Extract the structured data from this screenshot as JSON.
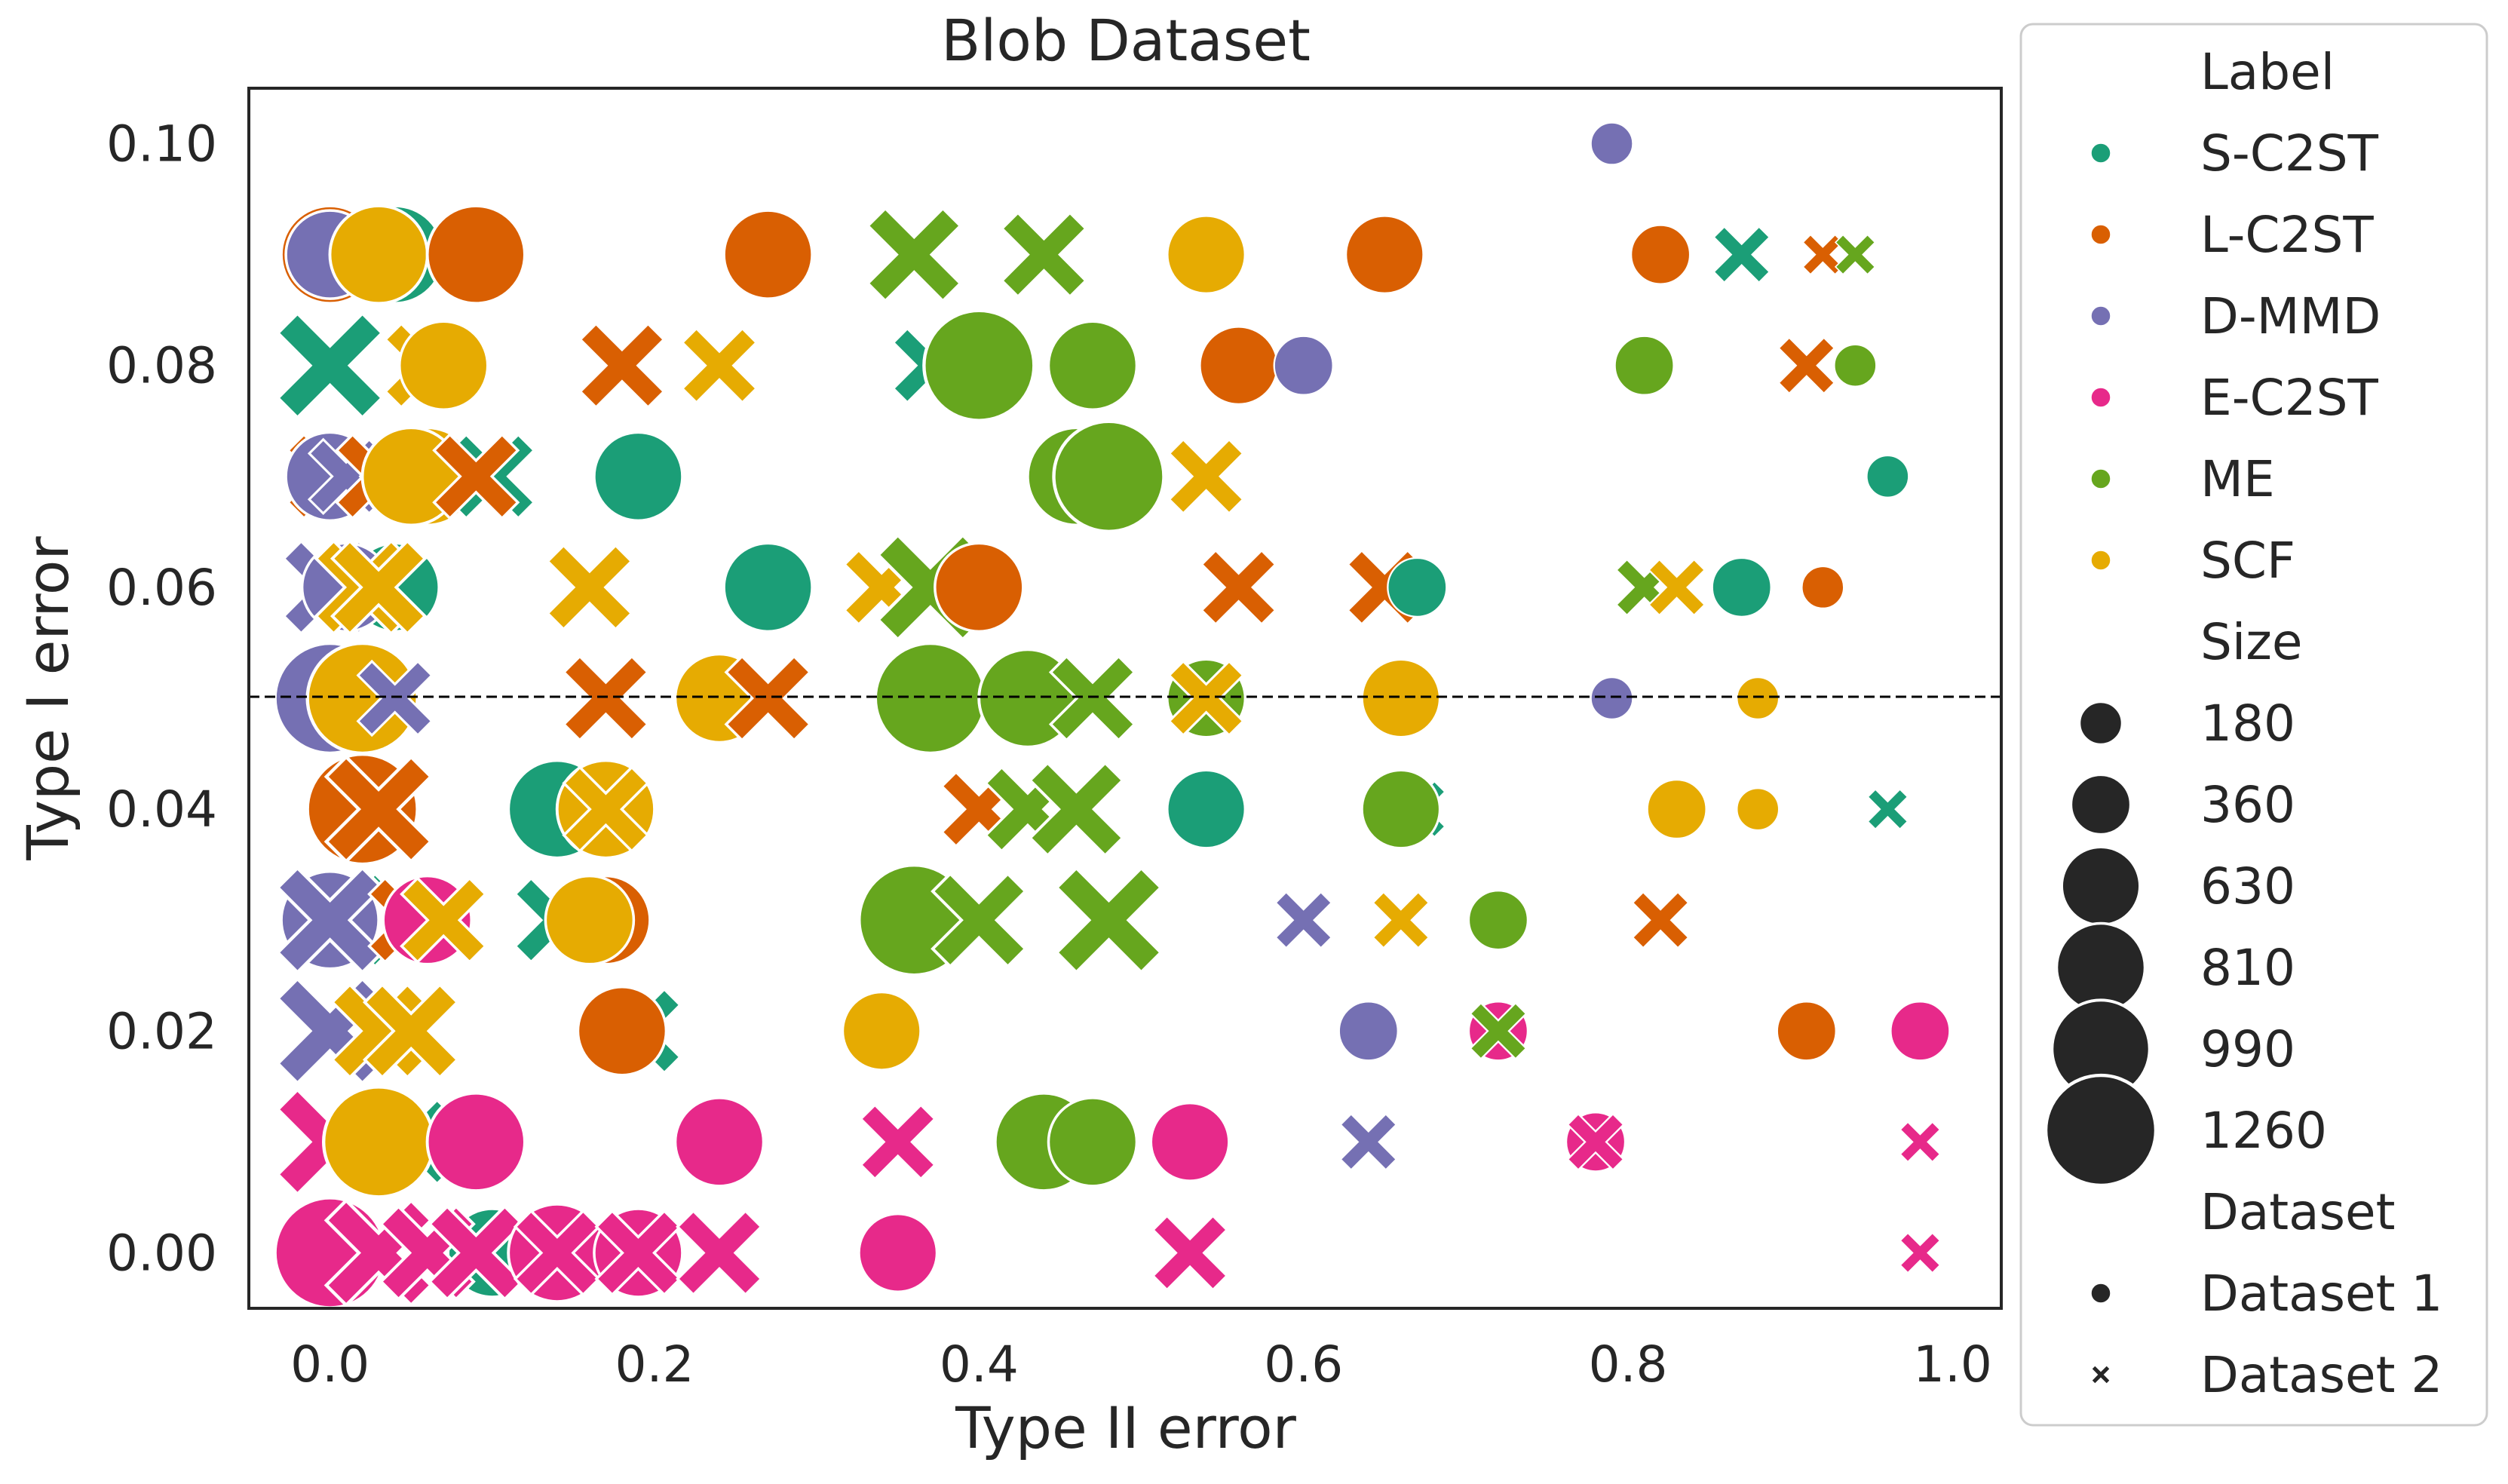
{
  "chart_data": {
    "type": "scatter",
    "title": "Blob Dataset",
    "xlabel": "Type II error",
    "ylabel": "Type I error",
    "xlim": [
      -0.05,
      1.03
    ],
    "ylim": [
      -0.005,
      0.105
    ],
    "xticks": [
      "0.0",
      "0.2",
      "0.4",
      "0.6",
      "0.8",
      "1.0"
    ],
    "xtick_values": [
      0,
      0.2,
      0.4,
      0.6,
      0.8,
      1.0
    ],
    "yticks": [
      "0.00",
      "0.02",
      "0.04",
      "0.06",
      "0.08",
      "0.10"
    ],
    "ytick_values": [
      0,
      0.02,
      0.04,
      0.06,
      0.08,
      0.1
    ],
    "reference_line": {
      "y": 0.05,
      "style": "dashed",
      "color": "#000000"
    },
    "grid": false,
    "legend_position": "outside-right",
    "legend": {
      "label_title": "Label",
      "labels": [
        {
          "name": "S-C2ST",
          "color": "#1b9e77"
        },
        {
          "name": "L-C2ST",
          "color": "#d95f02"
        },
        {
          "name": "D-MMD",
          "color": "#7570b3"
        },
        {
          "name": "E-C2ST",
          "color": "#e7298a"
        },
        {
          "name": "ME",
          "color": "#66a61e"
        },
        {
          "name": "SCF",
          "color": "#e6ab02"
        }
      ],
      "size_title": "Size",
      "sizes": [
        "180",
        "360",
        "630",
        "810",
        "990",
        "1260"
      ],
      "dataset_title": "Dataset",
      "datasets": [
        {
          "name": "Dataset 1",
          "marker": "circle"
        },
        {
          "name": "Dataset 2",
          "marker": "x"
        }
      ]
    },
    "points": [
      {
        "x": 0.79,
        "y": 0.1,
        "label": "D-MMD",
        "size": 180,
        "dataset": 1
      },
      {
        "x": 0.0,
        "y": 0.09,
        "label": "L-C2ST",
        "size": 990,
        "dataset": 1
      },
      {
        "x": 0.0,
        "y": 0.09,
        "label": "D-MMD",
        "size": 810,
        "dataset": 1
      },
      {
        "x": 0.04,
        "y": 0.09,
        "label": "S-C2ST",
        "size": 990,
        "dataset": 1
      },
      {
        "x": 0.03,
        "y": 0.09,
        "label": "SCF",
        "size": 990,
        "dataset": 1
      },
      {
        "x": 0.09,
        "y": 0.09,
        "label": "L-C2ST",
        "size": 990,
        "dataset": 1
      },
      {
        "x": 0.27,
        "y": 0.09,
        "label": "L-C2ST",
        "size": 810,
        "dataset": 1
      },
      {
        "x": 0.36,
        "y": 0.09,
        "label": "ME",
        "size": 990,
        "dataset": 2
      },
      {
        "x": 0.44,
        "y": 0.09,
        "label": "ME",
        "size": 810,
        "dataset": 2
      },
      {
        "x": 0.54,
        "y": 0.09,
        "label": "SCF",
        "size": 630,
        "dataset": 1
      },
      {
        "x": 0.65,
        "y": 0.09,
        "label": "L-C2ST",
        "size": 630,
        "dataset": 1
      },
      {
        "x": 0.82,
        "y": 0.09,
        "label": "L-C2ST",
        "size": 360,
        "dataset": 1
      },
      {
        "x": 0.87,
        "y": 0.09,
        "label": "S-C2ST",
        "size": 360,
        "dataset": 2
      },
      {
        "x": 0.92,
        "y": 0.09,
        "label": "L-C2ST",
        "size": 180,
        "dataset": 2
      },
      {
        "x": 0.94,
        "y": 0.09,
        "label": "ME",
        "size": 180,
        "dataset": 2
      },
      {
        "x": 0.0,
        "y": 0.08,
        "label": "S-C2ST",
        "size": 1260,
        "dataset": 2
      },
      {
        "x": 0.06,
        "y": 0.08,
        "label": "SCF",
        "size": 810,
        "dataset": 2
      },
      {
        "x": 0.07,
        "y": 0.08,
        "label": "SCF",
        "size": 810,
        "dataset": 1
      },
      {
        "x": 0.18,
        "y": 0.08,
        "label": "L-C2ST",
        "size": 810,
        "dataset": 2
      },
      {
        "x": 0.24,
        "y": 0.08,
        "label": "SCF",
        "size": 630,
        "dataset": 2
      },
      {
        "x": 0.37,
        "y": 0.08,
        "label": "S-C2ST",
        "size": 630,
        "dataset": 2
      },
      {
        "x": 0.4,
        "y": 0.08,
        "label": "ME",
        "size": 1260,
        "dataset": 1
      },
      {
        "x": 0.47,
        "y": 0.08,
        "label": "ME",
        "size": 810,
        "dataset": 1
      },
      {
        "x": 0.56,
        "y": 0.08,
        "label": "L-C2ST",
        "size": 630,
        "dataset": 1
      },
      {
        "x": 0.6,
        "y": 0.08,
        "label": "D-MMD",
        "size": 360,
        "dataset": 1
      },
      {
        "x": 0.81,
        "y": 0.08,
        "label": "ME",
        "size": 360,
        "dataset": 1
      },
      {
        "x": 0.91,
        "y": 0.08,
        "label": "L-C2ST",
        "size": 360,
        "dataset": 2
      },
      {
        "x": 0.94,
        "y": 0.08,
        "label": "ME",
        "size": 180,
        "dataset": 1
      },
      {
        "x": 0.0,
        "y": 0.07,
        "label": "L-C2ST",
        "size": 810,
        "dataset": 2
      },
      {
        "x": 0.0,
        "y": 0.07,
        "label": "D-MMD",
        "size": 810,
        "dataset": 1
      },
      {
        "x": 0.01,
        "y": 0.07,
        "label": "D-MMD",
        "size": 630,
        "dataset": 2
      },
      {
        "x": 0.03,
        "y": 0.07,
        "label": "L-C2ST",
        "size": 810,
        "dataset": 2
      },
      {
        "x": 0.05,
        "y": 0.07,
        "label": "L-C2ST",
        "size": 810,
        "dataset": 2
      },
      {
        "x": 0.06,
        "y": 0.07,
        "label": "SCF",
        "size": 990,
        "dataset": 1
      },
      {
        "x": 0.05,
        "y": 0.07,
        "label": "SCF",
        "size": 990,
        "dataset": 1
      },
      {
        "x": 0.1,
        "y": 0.07,
        "label": "S-C2ST",
        "size": 810,
        "dataset": 2
      },
      {
        "x": 0.09,
        "y": 0.07,
        "label": "L-C2ST",
        "size": 810,
        "dataset": 2
      },
      {
        "x": 0.19,
        "y": 0.07,
        "label": "S-C2ST",
        "size": 810,
        "dataset": 1
      },
      {
        "x": 0.46,
        "y": 0.07,
        "label": "ME",
        "size": 990,
        "dataset": 1
      },
      {
        "x": 0.48,
        "y": 0.07,
        "label": "ME",
        "size": 1260,
        "dataset": 1
      },
      {
        "x": 0.54,
        "y": 0.07,
        "label": "SCF",
        "size": 630,
        "dataset": 2
      },
      {
        "x": 0.96,
        "y": 0.07,
        "label": "S-C2ST",
        "size": 180,
        "dataset": 1
      },
      {
        "x": 0.04,
        "y": 0.06,
        "label": "S-C2ST",
        "size": 810,
        "dataset": 1
      },
      {
        "x": 0.0,
        "y": 0.06,
        "label": "D-MMD",
        "size": 990,
        "dataset": 2
      },
      {
        "x": 0.01,
        "y": 0.06,
        "label": "D-MMD",
        "size": 810,
        "dataset": 1
      },
      {
        "x": 0.02,
        "y": 0.06,
        "label": "SCF",
        "size": 990,
        "dataset": 2
      },
      {
        "x": 0.03,
        "y": 0.06,
        "label": "SCF",
        "size": 990,
        "dataset": 2
      },
      {
        "x": 0.16,
        "y": 0.06,
        "label": "SCF",
        "size": 810,
        "dataset": 2
      },
      {
        "x": 0.27,
        "y": 0.06,
        "label": "S-C2ST",
        "size": 810,
        "dataset": 1
      },
      {
        "x": 0.34,
        "y": 0.06,
        "label": "SCF",
        "size": 630,
        "dataset": 2
      },
      {
        "x": 0.37,
        "y": 0.06,
        "label": "ME",
        "size": 1260,
        "dataset": 2
      },
      {
        "x": 0.4,
        "y": 0.06,
        "label": "L-C2ST",
        "size": 810,
        "dataset": 1
      },
      {
        "x": 0.56,
        "y": 0.06,
        "label": "L-C2ST",
        "size": 630,
        "dataset": 2
      },
      {
        "x": 0.65,
        "y": 0.06,
        "label": "L-C2ST",
        "size": 630,
        "dataset": 2
      },
      {
        "x": 0.67,
        "y": 0.06,
        "label": "S-C2ST",
        "size": 360,
        "dataset": 1
      },
      {
        "x": 0.81,
        "y": 0.06,
        "label": "ME",
        "size": 360,
        "dataset": 2
      },
      {
        "x": 0.83,
        "y": 0.06,
        "label": "SCF",
        "size": 360,
        "dataset": 2
      },
      {
        "x": 0.87,
        "y": 0.06,
        "label": "S-C2ST",
        "size": 360,
        "dataset": 1
      },
      {
        "x": 0.92,
        "y": 0.06,
        "label": "L-C2ST",
        "size": 180,
        "dataset": 1
      },
      {
        "x": 0.0,
        "y": 0.05,
        "label": "D-MMD",
        "size": 1260,
        "dataset": 1
      },
      {
        "x": 0.02,
        "y": 0.05,
        "label": "SCF",
        "size": 1260,
        "dataset": 1
      },
      {
        "x": 0.04,
        "y": 0.05,
        "label": "D-MMD",
        "size": 630,
        "dataset": 2
      },
      {
        "x": 0.17,
        "y": 0.05,
        "label": "L-C2ST",
        "size": 810,
        "dataset": 2
      },
      {
        "x": 0.24,
        "y": 0.05,
        "label": "SCF",
        "size": 810,
        "dataset": 1
      },
      {
        "x": 0.27,
        "y": 0.05,
        "label": "L-C2ST",
        "size": 810,
        "dataset": 2
      },
      {
        "x": 0.37,
        "y": 0.05,
        "label": "ME",
        "size": 1260,
        "dataset": 1
      },
      {
        "x": 0.43,
        "y": 0.05,
        "label": "ME",
        "size": 990,
        "dataset": 1
      },
      {
        "x": 0.47,
        "y": 0.05,
        "label": "ME",
        "size": 810,
        "dataset": 2
      },
      {
        "x": 0.54,
        "y": 0.05,
        "label": "ME",
        "size": 630,
        "dataset": 1
      },
      {
        "x": 0.54,
        "y": 0.05,
        "label": "SCF",
        "size": 630,
        "dataset": 2
      },
      {
        "x": 0.66,
        "y": 0.05,
        "label": "SCF",
        "size": 630,
        "dataset": 1
      },
      {
        "x": 0.79,
        "y": 0.05,
        "label": "D-MMD",
        "size": 180,
        "dataset": 1
      },
      {
        "x": 0.88,
        "y": 0.05,
        "label": "SCF",
        "size": 180,
        "dataset": 1
      },
      {
        "x": 0.01,
        "y": 0.04,
        "label": "D-MMD",
        "size": 630,
        "dataset": 1
      },
      {
        "x": 0.02,
        "y": 0.04,
        "label": "L-C2ST",
        "size": 1260,
        "dataset": 1
      },
      {
        "x": 0.03,
        "y": 0.04,
        "label": "L-C2ST",
        "size": 1260,
        "dataset": 2
      },
      {
        "x": 0.14,
        "y": 0.04,
        "label": "S-C2ST",
        "size": 990,
        "dataset": 1
      },
      {
        "x": 0.17,
        "y": 0.04,
        "label": "SCF",
        "size": 990,
        "dataset": 1
      },
      {
        "x": 0.17,
        "y": 0.04,
        "label": "SCF",
        "size": 810,
        "dataset": 2
      },
      {
        "x": 0.4,
        "y": 0.04,
        "label": "L-C2ST",
        "size": 630,
        "dataset": 2
      },
      {
        "x": 0.43,
        "y": 0.04,
        "label": "ME",
        "size": 810,
        "dataset": 2
      },
      {
        "x": 0.46,
        "y": 0.04,
        "label": "ME",
        "size": 990,
        "dataset": 2
      },
      {
        "x": 0.54,
        "y": 0.04,
        "label": "S-C2ST",
        "size": 630,
        "dataset": 1
      },
      {
        "x": 0.67,
        "y": 0.04,
        "label": "S-C2ST",
        "size": 360,
        "dataset": 2
      },
      {
        "x": 0.66,
        "y": 0.04,
        "label": "ME",
        "size": 630,
        "dataset": 1
      },
      {
        "x": 0.83,
        "y": 0.04,
        "label": "SCF",
        "size": 360,
        "dataset": 1
      },
      {
        "x": 0.88,
        "y": 0.04,
        "label": "SCF",
        "size": 180,
        "dataset": 1
      },
      {
        "x": 0.96,
        "y": 0.04,
        "label": "S-C2ST",
        "size": 180,
        "dataset": 2
      },
      {
        "x": 0.01,
        "y": 0.03,
        "label": "S-C2ST",
        "size": 990,
        "dataset": 2
      },
      {
        "x": 0.0,
        "y": 0.03,
        "label": "D-MMD",
        "size": 990,
        "dataset": 1
      },
      {
        "x": 0.0,
        "y": 0.03,
        "label": "D-MMD",
        "size": 1260,
        "dataset": 2
      },
      {
        "x": 0.05,
        "y": 0.03,
        "label": "L-C2ST",
        "size": 810,
        "dataset": 2
      },
      {
        "x": 0.06,
        "y": 0.03,
        "label": "E-C2ST",
        "size": 810,
        "dataset": 1
      },
      {
        "x": 0.07,
        "y": 0.03,
        "label": "SCF",
        "size": 810,
        "dataset": 2
      },
      {
        "x": 0.14,
        "y": 0.03,
        "label": "S-C2ST",
        "size": 810,
        "dataset": 2
      },
      {
        "x": 0.17,
        "y": 0.03,
        "label": "L-C2ST",
        "size": 810,
        "dataset": 1
      },
      {
        "x": 0.16,
        "y": 0.03,
        "label": "SCF",
        "size": 810,
        "dataset": 1
      },
      {
        "x": 0.36,
        "y": 0.03,
        "label": "ME",
        "size": 1260,
        "dataset": 1
      },
      {
        "x": 0.4,
        "y": 0.03,
        "label": "ME",
        "size": 990,
        "dataset": 2
      },
      {
        "x": 0.48,
        "y": 0.03,
        "label": "ME",
        "size": 1260,
        "dataset": 2
      },
      {
        "x": 0.6,
        "y": 0.03,
        "label": "D-MMD",
        "size": 360,
        "dataset": 2
      },
      {
        "x": 0.66,
        "y": 0.03,
        "label": "SCF",
        "size": 360,
        "dataset": 2
      },
      {
        "x": 0.72,
        "y": 0.03,
        "label": "ME",
        "size": 360,
        "dataset": 1
      },
      {
        "x": 0.82,
        "y": 0.03,
        "label": "L-C2ST",
        "size": 360,
        "dataset": 2
      },
      {
        "x": 0.0,
        "y": 0.02,
        "label": "D-MMD",
        "size": 1260,
        "dataset": 2
      },
      {
        "x": 0.03,
        "y": 0.02,
        "label": "SCF",
        "size": 990,
        "dataset": 2
      },
      {
        "x": 0.05,
        "y": 0.02,
        "label": "SCF",
        "size": 990,
        "dataset": 2
      },
      {
        "x": 0.19,
        "y": 0.02,
        "label": "S-C2ST",
        "size": 810,
        "dataset": 2
      },
      {
        "x": 0.18,
        "y": 0.02,
        "label": "L-C2ST",
        "size": 810,
        "dataset": 1
      },
      {
        "x": 0.34,
        "y": 0.02,
        "label": "SCF",
        "size": 630,
        "dataset": 1
      },
      {
        "x": 0.64,
        "y": 0.02,
        "label": "D-MMD",
        "size": 360,
        "dataset": 1
      },
      {
        "x": 0.72,
        "y": 0.02,
        "label": "E-C2ST",
        "size": 360,
        "dataset": 1
      },
      {
        "x": 0.72,
        "y": 0.02,
        "label": "ME",
        "size": 360,
        "dataset": 2
      },
      {
        "x": 0.91,
        "y": 0.02,
        "label": "L-C2ST",
        "size": 360,
        "dataset": 1
      },
      {
        "x": 0.98,
        "y": 0.02,
        "label": "E-C2ST",
        "size": 360,
        "dataset": 1
      },
      {
        "x": 0.05,
        "y": 0.01,
        "label": "S-C2ST",
        "size": 810,
        "dataset": 2
      },
      {
        "x": 0.0,
        "y": 0.01,
        "label": "E-C2ST",
        "size": 1260,
        "dataset": 2
      },
      {
        "x": 0.03,
        "y": 0.01,
        "label": "SCF",
        "size": 1260,
        "dataset": 1
      },
      {
        "x": 0.09,
        "y": 0.01,
        "label": "E-C2ST",
        "size": 990,
        "dataset": 1
      },
      {
        "x": 0.24,
        "y": 0.01,
        "label": "E-C2ST",
        "size": 810,
        "dataset": 1
      },
      {
        "x": 0.35,
        "y": 0.01,
        "label": "E-C2ST",
        "size": 630,
        "dataset": 2
      },
      {
        "x": 0.44,
        "y": 0.01,
        "label": "ME",
        "size": 990,
        "dataset": 1
      },
      {
        "x": 0.47,
        "y": 0.01,
        "label": "ME",
        "size": 810,
        "dataset": 1
      },
      {
        "x": 0.53,
        "y": 0.01,
        "label": "E-C2ST",
        "size": 630,
        "dataset": 1
      },
      {
        "x": 0.64,
        "y": 0.01,
        "label": "D-MMD",
        "size": 360,
        "dataset": 2
      },
      {
        "x": 0.78,
        "y": 0.01,
        "label": "E-C2ST",
        "size": 360,
        "dataset": 1
      },
      {
        "x": 0.78,
        "y": 0.01,
        "label": "E-C2ST",
        "size": 360,
        "dataset": 2
      },
      {
        "x": 0.98,
        "y": 0.01,
        "label": "E-C2ST",
        "size": 180,
        "dataset": 2
      },
      {
        "x": 0.1,
        "y": 0.0,
        "label": "S-C2ST",
        "size": 810,
        "dataset": 1
      },
      {
        "x": 0.0,
        "y": 0.0,
        "label": "E-C2ST",
        "size": 1260,
        "dataset": 1
      },
      {
        "x": 0.03,
        "y": 0.0,
        "label": "E-C2ST",
        "size": 1260,
        "dataset": 2
      },
      {
        "x": 0.06,
        "y": 0.0,
        "label": "E-C2ST",
        "size": 990,
        "dataset": 2
      },
      {
        "x": 0.09,
        "y": 0.0,
        "label": "E-C2ST",
        "size": 990,
        "dataset": 2
      },
      {
        "x": 0.14,
        "y": 0.0,
        "label": "E-C2ST",
        "size": 990,
        "dataset": 1
      },
      {
        "x": 0.14,
        "y": 0.0,
        "label": "E-C2ST",
        "size": 810,
        "dataset": 2
      },
      {
        "x": 0.19,
        "y": 0.0,
        "label": "E-C2ST",
        "size": 810,
        "dataset": 1
      },
      {
        "x": 0.19,
        "y": 0.0,
        "label": "E-C2ST",
        "size": 810,
        "dataset": 2
      },
      {
        "x": 0.24,
        "y": 0.0,
        "label": "E-C2ST",
        "size": 810,
        "dataset": 2
      },
      {
        "x": 0.35,
        "y": 0.0,
        "label": "E-C2ST",
        "size": 630,
        "dataset": 1
      },
      {
        "x": 0.53,
        "y": 0.0,
        "label": "E-C2ST",
        "size": 630,
        "dataset": 2
      },
      {
        "x": 0.98,
        "y": 0.0,
        "label": "E-C2ST",
        "size": 180,
        "dataset": 2
      }
    ]
  }
}
